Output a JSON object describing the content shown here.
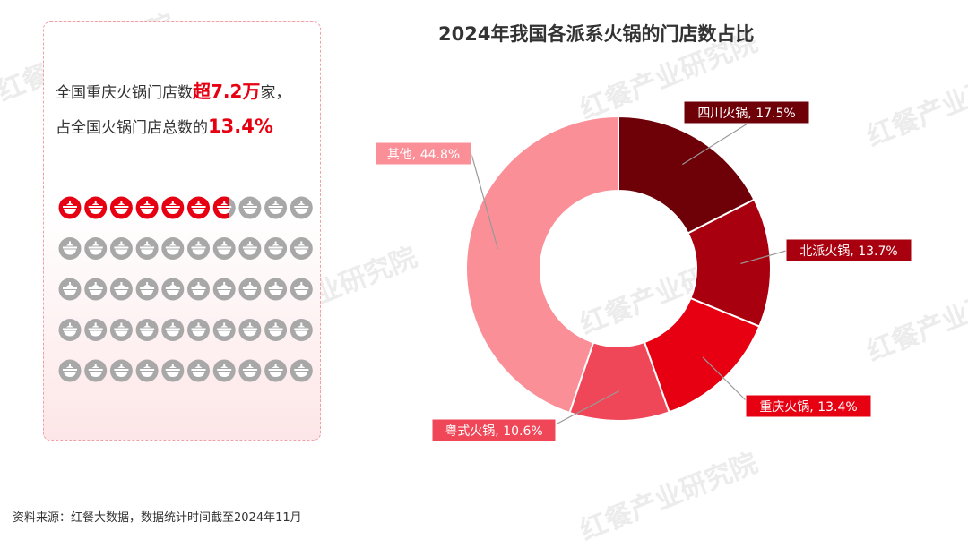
{
  "panel": {
    "line1": {
      "prefix": "全国重庆火锅门店数",
      "highlight": "超7.2万",
      "suffix": "家，"
    },
    "line2": {
      "prefix": "占全国火锅门店总数的",
      "highlight": "13.4%"
    },
    "icon_grid": {
      "total": 50,
      "filled": 6,
      "partial_fraction": 0.7,
      "filled_color": "#e60012",
      "empty_color": "#a8a8a8"
    }
  },
  "watermark": "红餐产业研究院",
  "source": "资料来源：红餐大数据，数据统计时间截至2024年11月",
  "chart_data": {
    "type": "pie",
    "title": "2024年我国各派系火锅的门店数占比",
    "slices": [
      {
        "label": "四川火锅, 17.5%",
        "value": 17.5,
        "color": "#6e0008"
      },
      {
        "label": "北派火锅, 13.7%",
        "value": 13.7,
        "color": "#a8000f"
      },
      {
        "label": "重庆火锅, 13.4%",
        "value": 13.4,
        "color": "#e60012"
      },
      {
        "label": "粤式火锅, 10.6%",
        "value": 10.6,
        "color": "#f04758"
      },
      {
        "label": "其他, 44.8%",
        "value": 44.8,
        "color": "#fb8f98"
      }
    ]
  }
}
